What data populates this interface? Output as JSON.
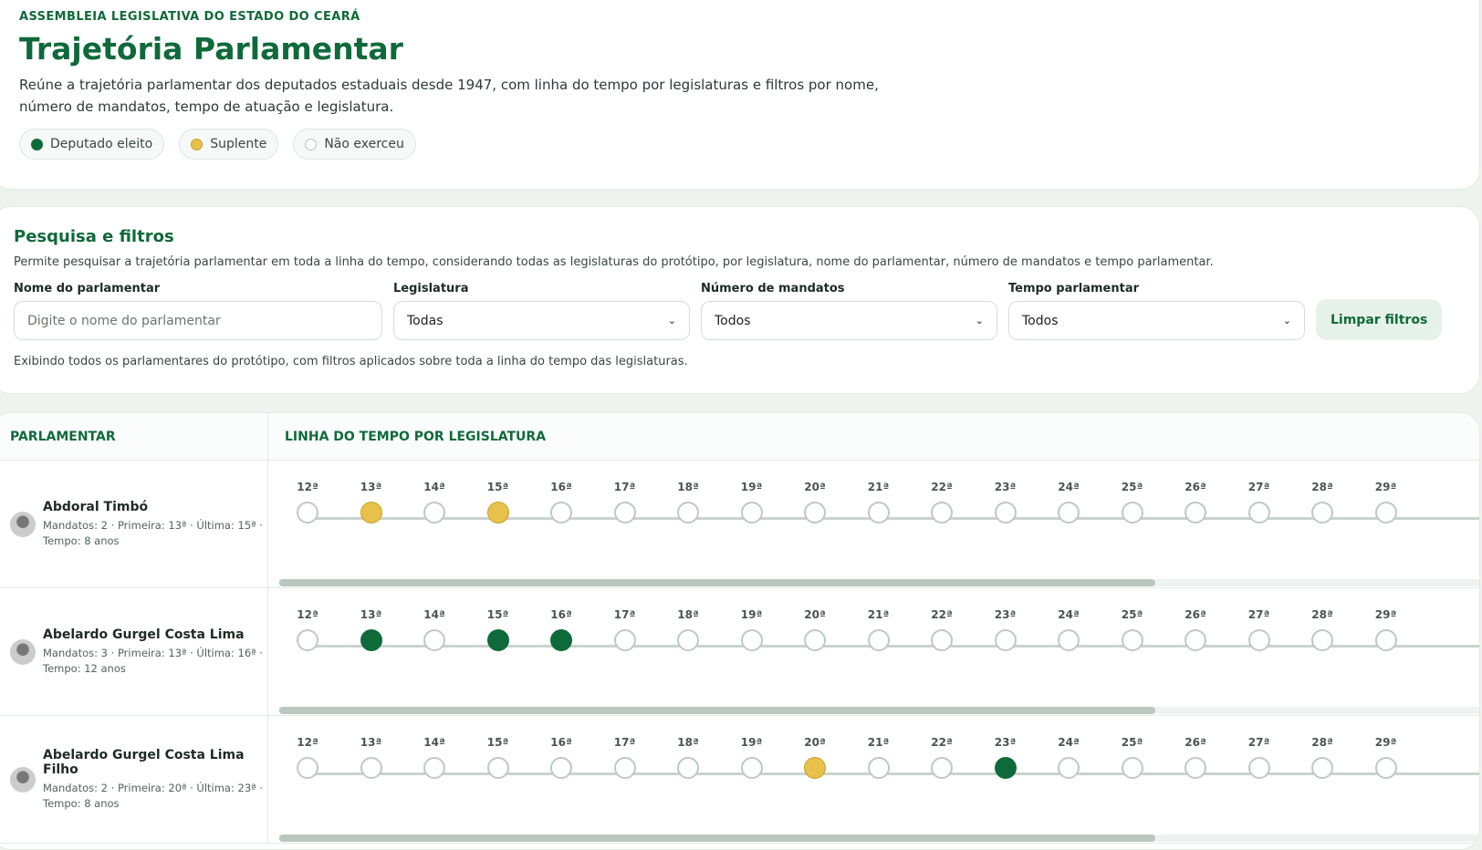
{
  "header": {
    "kicker": "ASSEMBLEIA LEGISLATIVA DO ESTADO DO CEARÁ",
    "title": "Trajetória Parlamentar",
    "description": "Reúne a trajetória parlamentar dos deputados estaduais desde 1947, com linha do tempo por legislaturas e filtros por nome, número de mandatos, tempo de atuação e legislatura."
  },
  "legend": [
    "Deputado eleito",
    "Suplente",
    "Não exerceu"
  ],
  "filters": {
    "title": "Pesquisa e filtros",
    "description": "Permite pesquisar a trajetória parlamentar em toda a linha do tempo, considerando todas as legislaturas do protótipo, por legislatura, nome do parlamentar, número de mandatos e tempo parlamentar.",
    "fields": [
      {
        "label": "Nome do parlamentar",
        "placeholder": "Digite o nome do parlamentar"
      },
      {
        "label": "Legislatura",
        "value": "Todas"
      },
      {
        "label": "Número de mandatos",
        "value": "Todos"
      },
      {
        "label": "Tempo parlamentar",
        "value": "Todos"
      }
    ],
    "button": "Limpar filtros",
    "note": "Exibindo todos os parlamentares do protótipo, com filtros aplicados sobre toda a linha do tempo das legislaturas."
  },
  "table": {
    "headers": [
      "PARLAMENTAR",
      "LINHA DO TEMPO POR LEGISLATURA"
    ],
    "legislatures": [
      "12ª",
      "13ª",
      "14ª",
      "15ª",
      "16ª",
      "17ª",
      "18ª",
      "19ª",
      "20ª",
      "21ª",
      "22ª",
      "23ª",
      "24ª",
      "25ª",
      "26ª",
      "27ª",
      "28ª",
      "29ª"
    ],
    "rows": [
      {
        "name": "Abdoral Timbó",
        "details": "Mandatos: 2 · Primeira: 13ª · Última: 15ª ·",
        "time": "Tempo: 8 anos",
        "timeline": [
          "Não exerceu",
          "Suplente",
          "Não exerceu",
          "Suplente",
          "Não exerceu",
          "Não exerceu",
          "Não exerceu",
          "Não exerceu",
          "Não exerceu",
          "Não exerceu",
          "Não exerceu",
          "Não exerceu",
          "Não exerceu",
          "Não exerceu",
          "Não exerceu",
          "Não exerceu",
          "Não exerceu",
          "Não exerceu"
        ]
      },
      {
        "name": "Abelardo Gurgel Costa Lima",
        "details": "Mandatos: 3 · Primeira: 13ª · Última: 16ª ·",
        "time": "Tempo: 12 anos",
        "timeline": [
          "Não exerceu",
          "Deputado eleito",
          "Não exerceu",
          "Deputado eleito",
          "Deputado eleito",
          "Não exerceu",
          "Não exerceu",
          "Não exerceu",
          "Não exerceu",
          "Não exerceu",
          "Não exerceu",
          "Não exerceu",
          "Não exerceu",
          "Não exerceu",
          "Não exerceu",
          "Não exerceu",
          "Não exerceu",
          "Não exerceu"
        ]
      },
      {
        "name": "Abelardo Gurgel Costa Lima Filho",
        "details": "Mandatos: 2 · Primeira: 20ª · Última: 23ª ·",
        "time": "Tempo: 8 anos",
        "timeline": [
          "Não exerceu",
          "Não exerceu",
          "Não exerceu",
          "Não exerceu",
          "Não exerceu",
          "Não exerceu",
          "Não exerceu",
          "Não exerceu",
          "Suplente",
          "Não exerceu",
          "Não exerceu",
          "Deputado eleito",
          "Não exerceu",
          "Não exerceu",
          "Não exerceu",
          "Não exerceu",
          "Não exerceu",
          "Não exerceu"
        ]
      }
    ]
  }
}
